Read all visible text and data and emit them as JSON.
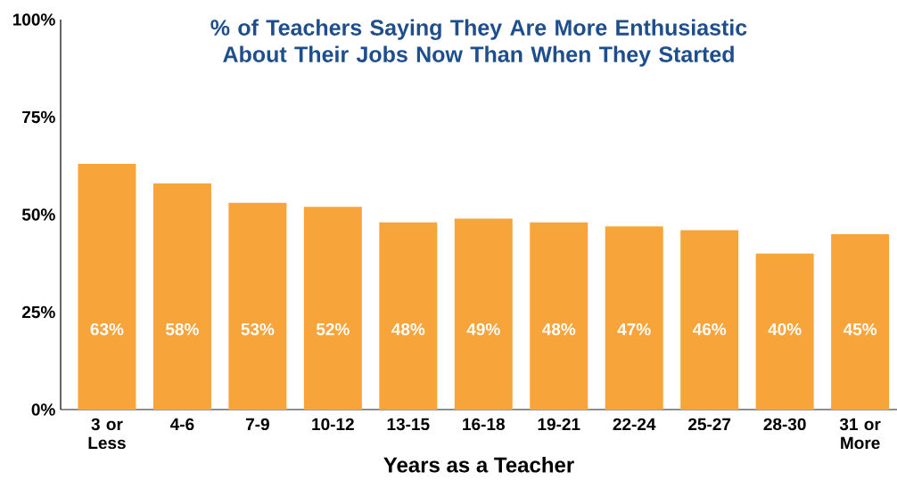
{
  "chart_data": {
    "type": "bar",
    "title": "% of Teachers Saying They Are More Enthusiastic About Their Jobs Now Than When They Started",
    "xlabel": "Years as a Teacher",
    "categories": [
      "3 or Less",
      "4-6",
      "7-9",
      "10-12",
      "13-15",
      "16-18",
      "19-21",
      "22-24",
      "25-27",
      "28-30",
      "31 or More"
    ],
    "values": [
      63,
      58,
      53,
      52,
      48,
      49,
      48,
      47,
      46,
      40,
      45
    ],
    "value_labels": [
      "63%",
      "58%",
      "53%",
      "52%",
      "48%",
      "49%",
      "48%",
      "47%",
      "46%",
      "40%",
      "45%"
    ],
    "color": "#f7a43b",
    "ylim": [
      0,
      100
    ],
    "yticks": [
      {
        "value": 0,
        "label": "0%"
      },
      {
        "value": 25,
        "label": "25%"
      },
      {
        "value": 50,
        "label": "50%"
      },
      {
        "value": 75,
        "label": "75%"
      },
      {
        "value": 100,
        "label": "100%"
      }
    ],
    "grid": false
  }
}
